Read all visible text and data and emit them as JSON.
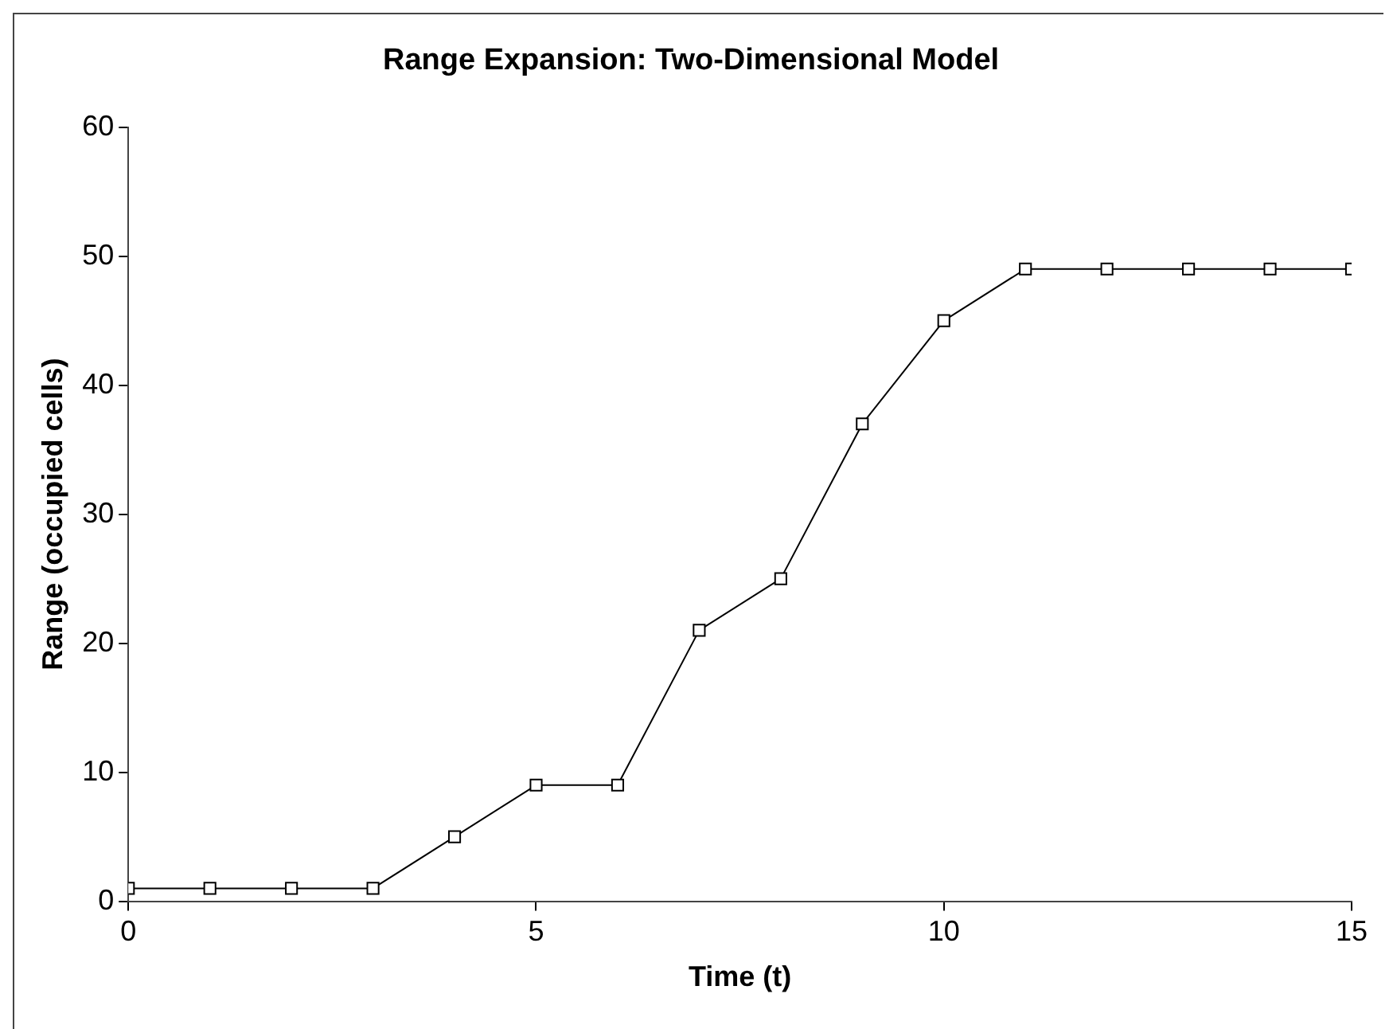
{
  "chart_data": {
    "type": "line",
    "title": "Range Expansion: Two-Dimensional Model",
    "xlabel": "Time (t)",
    "ylabel": "Range (occupied cells)",
    "x": [
      0,
      1,
      2,
      3,
      4,
      5,
      6,
      7,
      8,
      9,
      10,
      11,
      12,
      13,
      14,
      15
    ],
    "series": [
      {
        "color": "#000000",
        "values": [
          1,
          1,
          1,
          1,
          5,
          9,
          9,
          21,
          25,
          37,
          45,
          49,
          49,
          49,
          49,
          49
        ]
      }
    ],
    "xlim": [
      0,
      15
    ],
    "xticks": [
      0,
      5,
      10,
      15
    ],
    "ylim": [
      0,
      60
    ],
    "yticks": [
      0,
      10,
      20,
      30,
      40,
      50,
      60
    ],
    "grid": false,
    "legend": false,
    "marker": "square",
    "line_style": "solid"
  }
}
